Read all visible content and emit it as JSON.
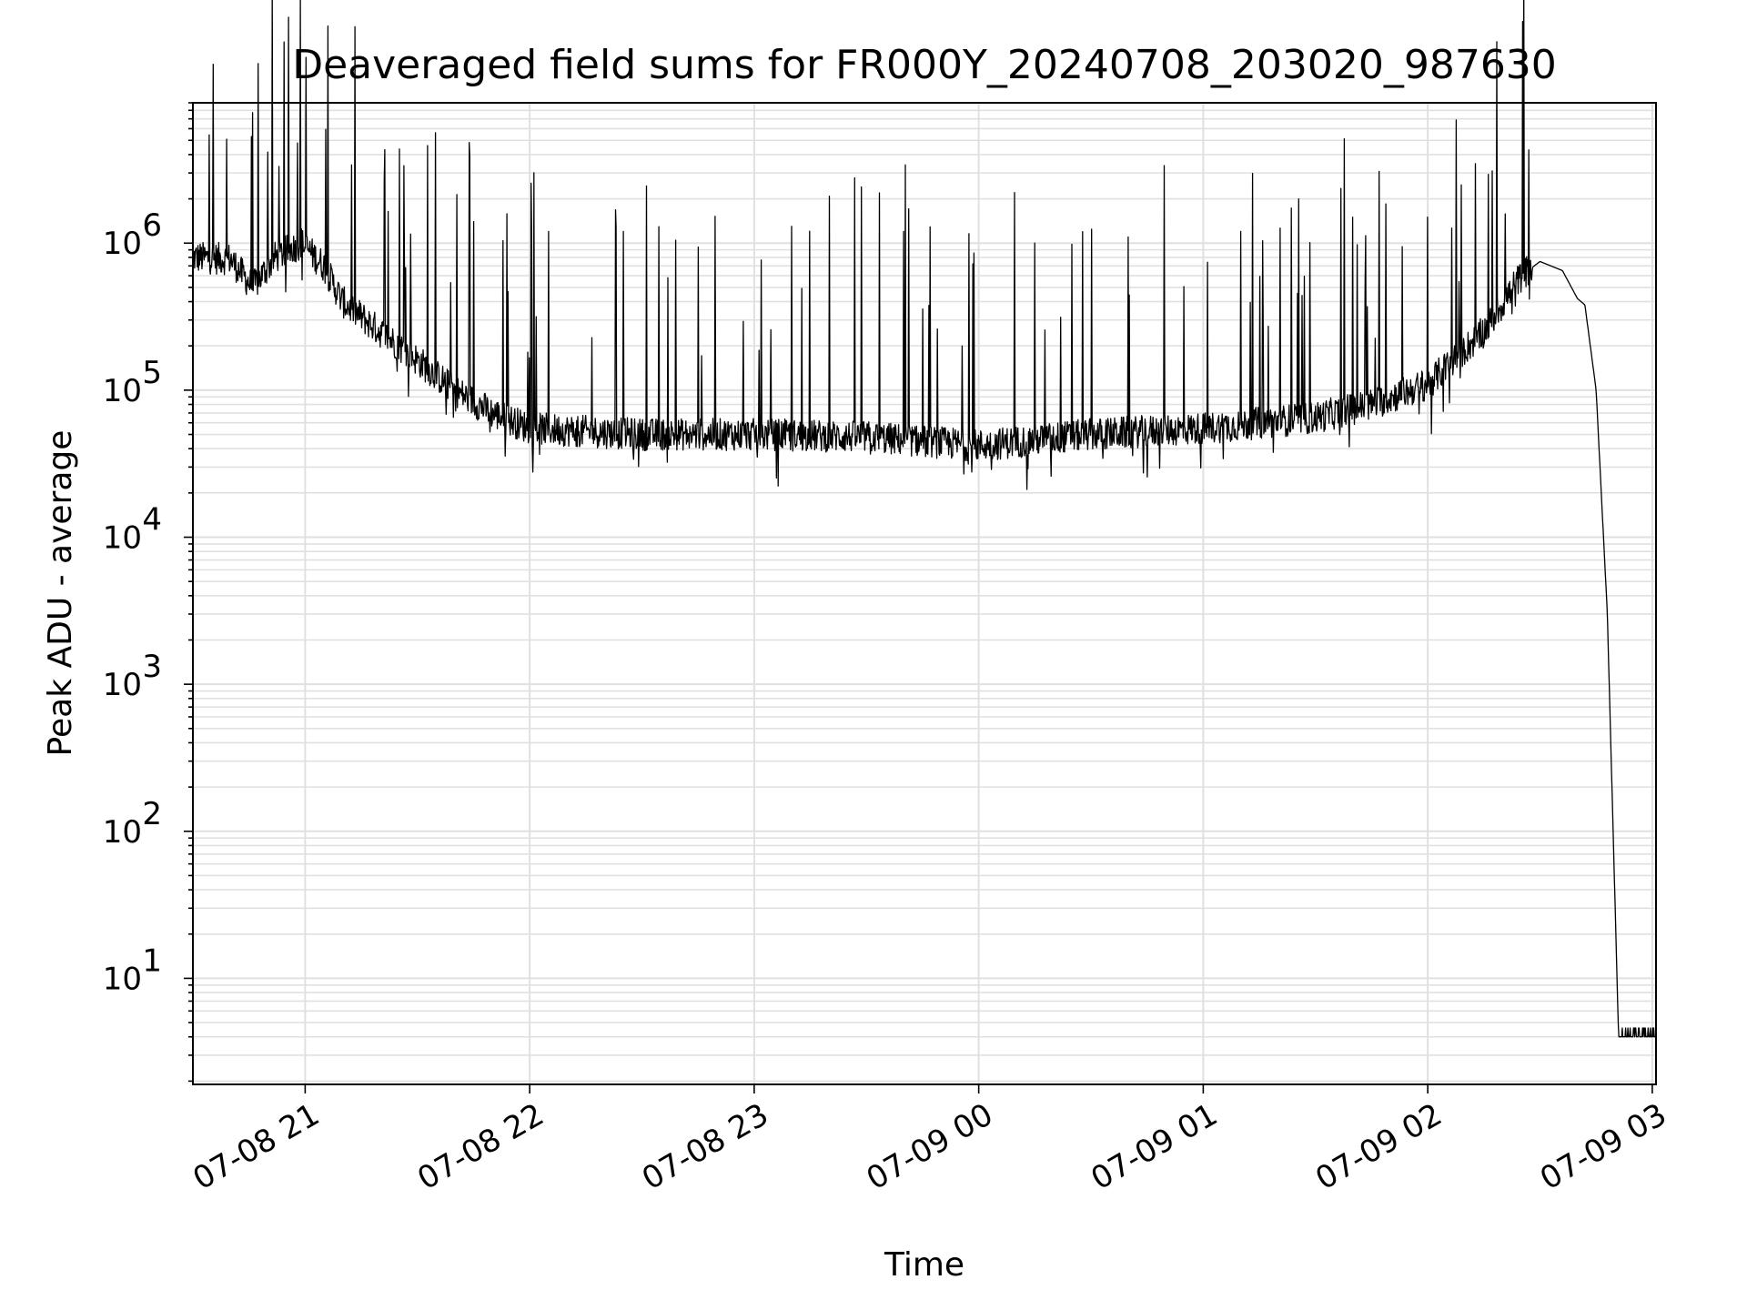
{
  "chart_data": {
    "type": "line",
    "title": "Deaveraged field sums for FR000Y_20240708_203020_987630",
    "xlabel": "Time",
    "ylabel": "Peak ADU - average",
    "y_scale": "log",
    "ylim": [
      1.9,
      9000000
    ],
    "xlim": [
      "2024-07-08 20:30",
      "2024-07-09 03:01"
    ],
    "grid": true,
    "line_color": "#000000",
    "grid_color": "#e0e0e0",
    "x_ticks": [
      "2024-07-08 21:00",
      "2024-07-08 22:00",
      "2024-07-08 23:00",
      "2024-07-09 00:00",
      "2024-07-09 01:00",
      "2024-07-09 02:00",
      "2024-07-09 03:00"
    ],
    "x_tick_labels": [
      "07-08 21",
      "07-08 22",
      "07-08 23",
      "07-09 00",
      "07-09 01",
      "07-09 02",
      "07-09 03"
    ],
    "y_ticks": [
      10,
      100,
      1000,
      10000,
      100000,
      1000000
    ],
    "y_tick_labels": [
      {
        "base": "10",
        "exp": "1"
      },
      {
        "base": "10",
        "exp": "2"
      },
      {
        "base": "10",
        "exp": "3"
      },
      {
        "base": "10",
        "exp": "4"
      },
      {
        "base": "10",
        "exp": "5"
      },
      {
        "base": "10",
        "exp": "6"
      }
    ],
    "series": [
      {
        "x": [
          "2024-07-08 20:30",
          "2024-07-08 20:40",
          "2024-07-08 20:46",
          "2024-07-08 20:52",
          "2024-07-08 20:59",
          "2024-07-08 21:05",
          "2024-07-08 21:10",
          "2024-07-08 21:20",
          "2024-07-08 21:30",
          "2024-07-08 21:40",
          "2024-07-08 21:50",
          "2024-07-08 22:00",
          "2024-07-08 22:30",
          "2024-07-08 23:00",
          "2024-07-08 23:30",
          "2024-07-09 00:00",
          "2024-07-09 00:30",
          "2024-07-09 01:00",
          "2024-07-09 01:30",
          "2024-07-09 01:45",
          "2024-07-09 02:00",
          "2024-07-09 02:15",
          "2024-07-09 02:25",
          "2024-07-09 02:30",
          "2024-07-09 02:36",
          "2024-07-09 02:40",
          "2024-07-09 02:42",
          "2024-07-09 02:45",
          "2024-07-09 02:48",
          "2024-07-09 02:51",
          "2024-07-09 02:55",
          "2024-07-09 02:58",
          "2024-07-09 03:01"
        ],
        "values": [
          800000,
          780000,
          500000,
          800000,
          1000000,
          700000,
          400000,
          250000,
          160000,
          100000,
          70000,
          55000,
          50000,
          50000,
          48000,
          42000,
          50000,
          55000,
          65000,
          80000,
          110000,
          250000,
          600000,
          750000,
          650000,
          420000,
          380000,
          100000,
          3000,
          4,
          4,
          4,
          4
        ]
      }
    ],
    "noise_floor": 42000,
    "spikes": [
      {
        "x": "2024-07-08 20:58",
        "value": 4800000
      },
      {
        "x": "2024-07-08 21:45",
        "value": 1400000
      },
      {
        "x": "2024-07-08 22:05",
        "value": 1200000
      },
      {
        "x": "2024-07-08 22:25",
        "value": 1200000
      },
      {
        "x": "2024-07-08 23:10",
        "value": 1300000
      },
      {
        "x": "2024-07-08 23:40",
        "value": 1200000
      },
      {
        "x": "2024-07-09 00:15",
        "value": 1000000
      },
      {
        "x": "2024-07-09 00:40",
        "value": 1100000
      },
      {
        "x": "2024-07-09 01:10",
        "value": 1200000
      },
      {
        "x": "2024-07-09 01:40",
        "value": 1500000
      },
      {
        "x": "2024-07-09 02:00",
        "value": 1500000
      },
      {
        "x": "2024-07-09 02:27",
        "value": 4300000
      }
    ]
  }
}
